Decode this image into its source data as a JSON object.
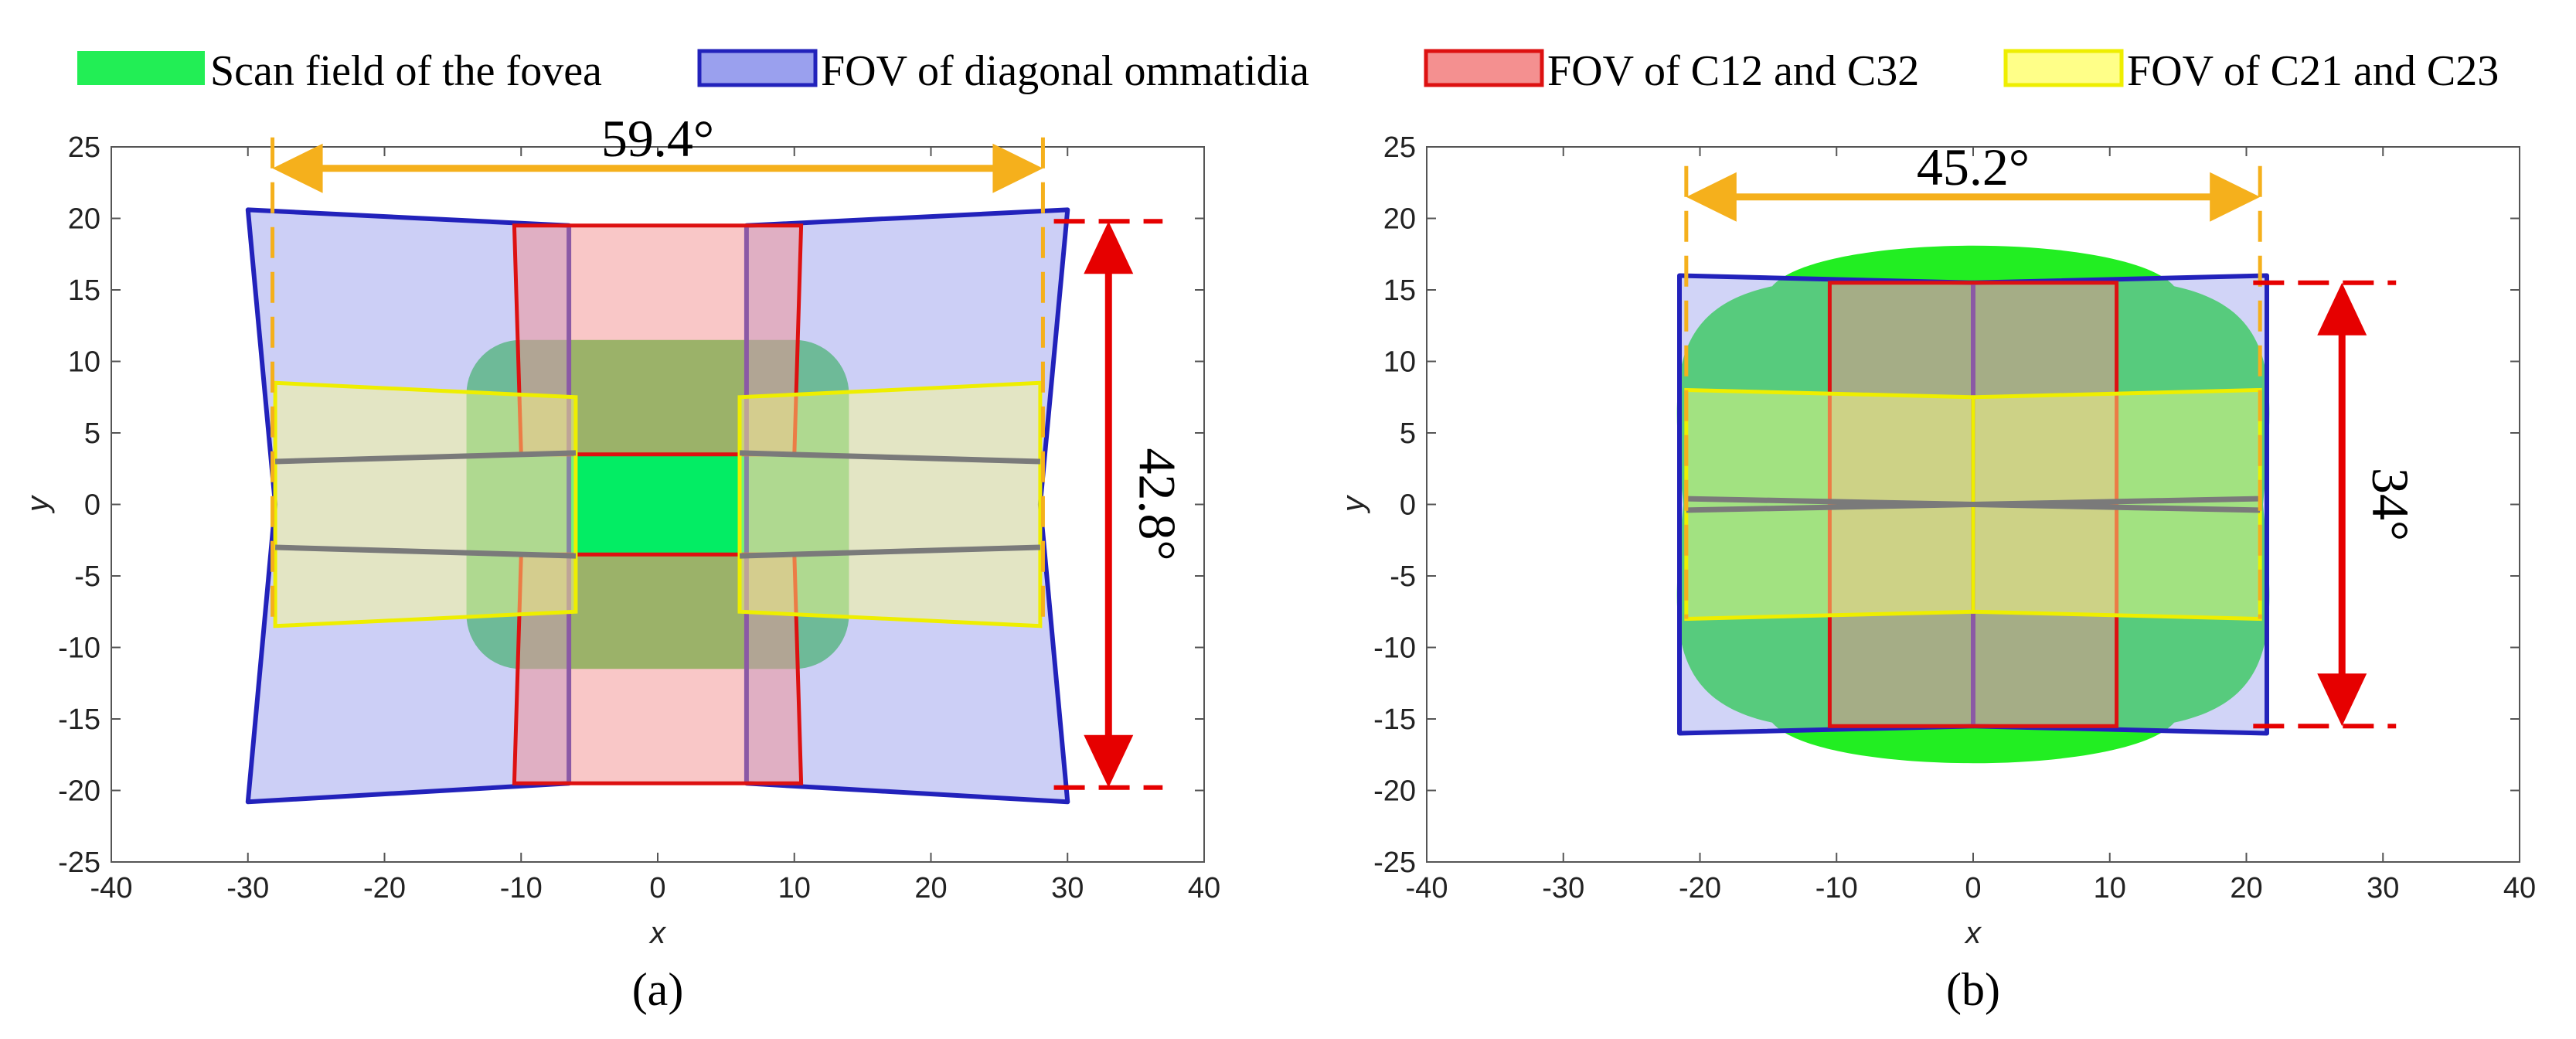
{
  "legend": [
    {
      "label": "Scan field of the fovea",
      "fill": "#22ee55",
      "stroke": "#22ee55"
    },
    {
      "label": "FOV of diagonal ommatidia",
      "fill": "#9aa0ee",
      "stroke": "#2222bb"
    },
    {
      "label": "FOV of C12 and C32",
      "fill": "#f49090",
      "stroke": "#dd1111"
    },
    {
      "label": "FOV of C21 and C23",
      "fill": "#ffff88",
      "stroke": "#eeee00"
    }
  ],
  "colors": {
    "orange": "#f5b01c",
    "red": "#e60000",
    "gray": "#7a7a7a"
  },
  "chart_data": [
    {
      "type": "region-plot",
      "caption": "(a)",
      "xlabel": "x",
      "ylabel": "y",
      "xlim": [
        -40,
        40
      ],
      "ylim": [
        -25,
        25
      ],
      "xticks": [
        -40,
        -30,
        -20,
        -10,
        0,
        10,
        20,
        30,
        40
      ],
      "yticks": [
        -25,
        -20,
        -15,
        -10,
        -5,
        0,
        5,
        10,
        15,
        20,
        25
      ],
      "scan_field": [
        {
          "x": [
            -14,
            14
          ],
          "y": [
            -11.5,
            11.5
          ],
          "color": "#22cc22",
          "opacity": 0.85,
          "rounded": true
        },
        {
          "x": [
            -6.5,
            6.5
          ],
          "y": [
            -3.5,
            3.5
          ],
          "color": "#00ee66",
          "opacity": 0.95
        }
      ],
      "diagonal_fov": [
        [
          [
            -30,
            20.6
          ],
          [
            -6.5,
            19.5
          ],
          [
            -6.5,
            -19.5
          ],
          [
            -30,
            -20.8
          ],
          [
            -28,
            0
          ]
        ],
        [
          [
            30,
            20.6
          ],
          [
            6.5,
            19.5
          ],
          [
            6.5,
            -19.5
          ],
          [
            30,
            -20.8
          ],
          [
            28,
            0
          ]
        ]
      ],
      "c12_c32_fov": [
        [
          [
            -10.5,
            19.5
          ],
          [
            10.5,
            19.5
          ],
          [
            10,
            3.5
          ],
          [
            -10,
            3.5
          ]
        ],
        [
          [
            -10.5,
            -19.5
          ],
          [
            10.5,
            -19.5
          ],
          [
            10,
            -3.5
          ],
          [
            -10,
            -3.5
          ]
        ]
      ],
      "c21_c23_fov": [
        [
          [
            -28,
            8.5
          ],
          [
            -6,
            7.5
          ],
          [
            -6,
            -7.5
          ],
          [
            -28,
            -8.5
          ]
        ],
        [
          [
            28,
            8.5
          ],
          [
            6,
            7.5
          ],
          [
            6,
            -7.5
          ],
          [
            28,
            -8.5
          ]
        ]
      ],
      "gray_lines": [
        [
          [
            -28,
            3
          ],
          [
            -6,
            3.6
          ]
        ],
        [
          [
            -28,
            -3
          ],
          [
            -6,
            -3.6
          ]
        ],
        [
          [
            28,
            3
          ],
          [
            6,
            3.6
          ]
        ],
        [
          [
            28,
            -3
          ],
          [
            6,
            -3.6
          ]
        ]
      ],
      "h_dimension": {
        "label": "59.4°",
        "from": -28.2,
        "to": 28.2,
        "y": 23.5
      },
      "v_dimension": {
        "label": "42.8°",
        "x": 33,
        "from": -19.8,
        "to": 19.8
      }
    },
    {
      "type": "region-plot",
      "caption": "(b)",
      "xlabel": "x",
      "ylabel": "y",
      "xlim": [
        -40,
        40
      ],
      "ylim": [
        -25,
        25
      ],
      "xticks": [
        -40,
        -30,
        -20,
        -10,
        0,
        10,
        20,
        30,
        40
      ],
      "yticks": [
        -25,
        -20,
        -15,
        -10,
        -5,
        0,
        5,
        10,
        15,
        20,
        25
      ],
      "scan_field_outer": {
        "x": [
          -21.5,
          21.5
        ],
        "y": [
          -18.5,
          18.5
        ],
        "color": "#22ee22"
      },
      "diagonal_fov": [
        [
          [
            -21.5,
            16
          ],
          [
            0,
            15.5
          ],
          [
            0,
            -15.5
          ],
          [
            -21.5,
            -16
          ]
        ],
        [
          [
            21.5,
            16
          ],
          [
            0,
            15.5
          ],
          [
            0,
            -15.5
          ],
          [
            21.5,
            -16
          ]
        ]
      ],
      "c12_c32_fov": [
        [
          [
            -10.5,
            15.5
          ],
          [
            10.5,
            15.5
          ],
          [
            10.5,
            0
          ],
          [
            -10.5,
            0
          ]
        ],
        [
          [
            -10.5,
            -15.5
          ],
          [
            10.5,
            -15.5
          ],
          [
            10.5,
            0
          ],
          [
            -10.5,
            0
          ]
        ]
      ],
      "c21_c23_fov": [
        [
          [
            -21,
            8
          ],
          [
            0,
            7.5
          ],
          [
            0,
            -7.5
          ],
          [
            -21,
            -8
          ]
        ],
        [
          [
            21,
            8
          ],
          [
            0,
            7.5
          ],
          [
            0,
            -7.5
          ],
          [
            21,
            -8
          ]
        ]
      ],
      "gray_lines": [
        [
          [
            -21,
            0.4
          ],
          [
            0,
            0
          ]
        ],
        [
          [
            -21,
            -0.4
          ],
          [
            0,
            0
          ]
        ],
        [
          [
            21,
            0.4
          ],
          [
            0,
            0
          ]
        ],
        [
          [
            21,
            -0.4
          ],
          [
            0,
            0
          ]
        ]
      ],
      "h_dimension": {
        "label": "45.2°",
        "from": -21,
        "to": 21,
        "y": 21.5
      },
      "v_dimension": {
        "label": "34°",
        "x": 27,
        "from": -15.5,
        "to": 15.5
      }
    }
  ]
}
